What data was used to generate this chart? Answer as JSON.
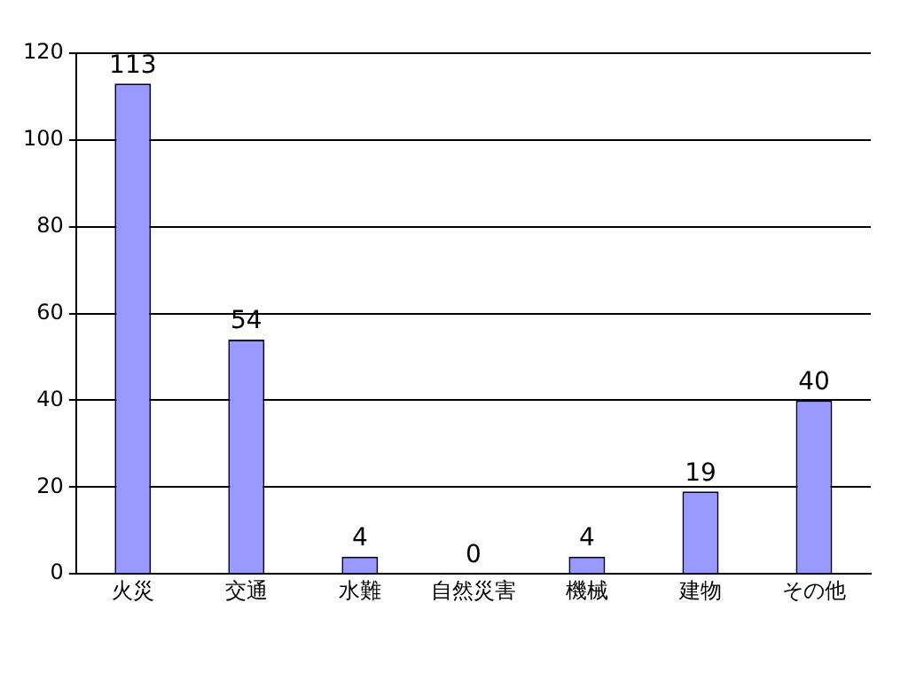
{
  "chart_data": {
    "type": "bar",
    "categories": [
      "火災",
      "交通",
      "水難",
      "自然災害",
      "機械",
      "建物",
      "その他"
    ],
    "values": [
      113,
      54,
      4,
      0,
      4,
      19,
      40
    ],
    "color": "#9999ff",
    "ylim": [
      0,
      120
    ],
    "yticks": [
      0,
      20,
      40,
      60,
      80,
      100,
      120
    ],
    "grid": "y",
    "data_labels": true,
    "legend": false
  }
}
